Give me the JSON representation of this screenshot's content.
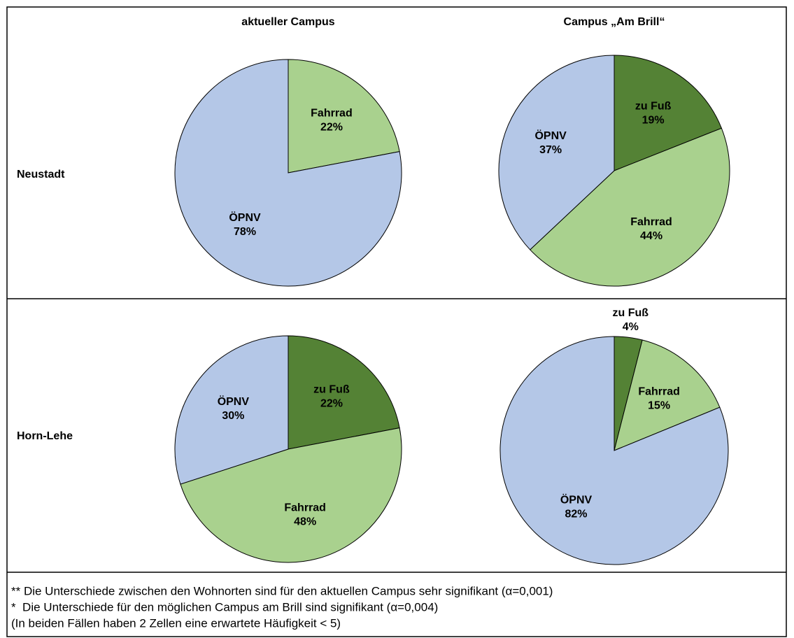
{
  "column_headers": [
    "aktueller Campus",
    "Campus „Am Brill“"
  ],
  "row_labels": [
    "Neustadt",
    "Horn-Lehe"
  ],
  "chart_data": [
    {
      "type": "pie",
      "categories": [
        "Fahrrad",
        "ÖPNV"
      ],
      "values": [
        22,
        78
      ],
      "value_labels": [
        "22%",
        "78%"
      ],
      "colors": [
        "#a9d18e",
        "#b4c7e7"
      ]
    },
    {
      "type": "pie",
      "categories": [
        "zu Fuß",
        "Fahrrad",
        "ÖPNV"
      ],
      "values": [
        19,
        44,
        37
      ],
      "value_labels": [
        "19%",
        "44%",
        "37%"
      ],
      "colors": [
        "#548235",
        "#a9d18e",
        "#b4c7e7"
      ]
    },
    {
      "type": "pie",
      "categories": [
        "zu Fuß",
        "Fahrrad",
        "ÖPNV"
      ],
      "values": [
        22,
        48,
        30
      ],
      "value_labels": [
        "22%",
        "48%",
        "30%"
      ],
      "colors": [
        "#548235",
        "#a9d18e",
        "#b4c7e7"
      ]
    },
    {
      "type": "pie",
      "categories": [
        "zu Fuß",
        "Fahrrad",
        "ÖPNV"
      ],
      "values": [
        4,
        15,
        82
      ],
      "value_labels": [
        "4%",
        "15%",
        "82%"
      ],
      "colors": [
        "#548235",
        "#a9d18e",
        "#b4c7e7"
      ]
    }
  ],
  "footnotes": [
    "** Die Unterschiede zwischen den Wohnorten sind für den aktuellen Campus sehr signifikant (α=0,001)",
    "*  Die Unterschiede für den möglichen Campus am Brill sind signifikant (α=0,004)",
    "(In beiden Fällen haben 2 Zellen eine erwartete Häufigkeit < 5)"
  ]
}
